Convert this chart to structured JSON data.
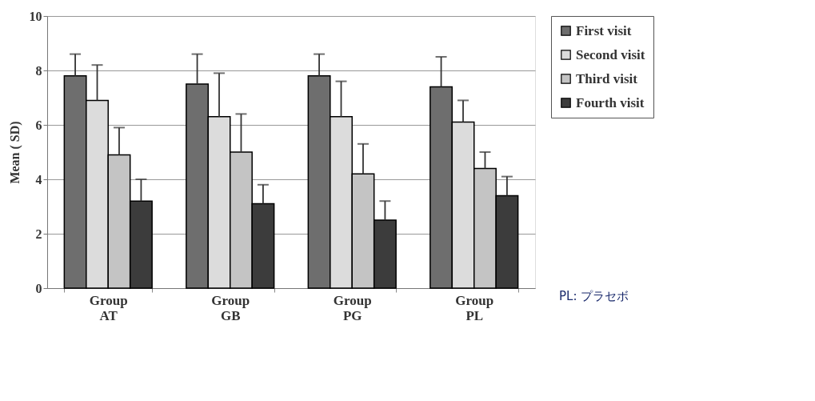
{
  "chart_data": {
    "type": "bar",
    "ylabel": "Mean ( SD)",
    "categories": [
      "Group AT",
      "Group GB",
      "Group PG",
      "Group PL"
    ],
    "series": [
      {
        "name": "First visit",
        "color": "#6e6e6e",
        "values": [
          7.8,
          7.5,
          7.8,
          7.4
        ],
        "errors": [
          [
            7.8,
            8.6
          ],
          [
            7.5,
            8.6
          ],
          [
            7.8,
            8.6
          ],
          [
            7.4,
            8.5
          ]
        ]
      },
      {
        "name": "Second visit",
        "color": "#dcdcdc",
        "values": [
          6.9,
          6.3,
          6.3,
          6.1
        ],
        "errors": [
          [
            6.9,
            8.2
          ],
          [
            6.3,
            7.9
          ],
          [
            6.3,
            7.6
          ],
          [
            6.1,
            6.9
          ]
        ]
      },
      {
        "name": "Third visit",
        "color": "#c4c4c4",
        "values": [
          4.9,
          5.0,
          4.2,
          4.4
        ],
        "errors": [
          [
            4.9,
            5.9
          ],
          [
            5.0,
            6.4
          ],
          [
            4.2,
            5.3
          ],
          [
            4.4,
            5.0
          ]
        ]
      },
      {
        "name": "Fourth visit",
        "color": "#3c3c3c",
        "values": [
          3.2,
          3.1,
          2.5,
          3.4
        ],
        "errors": [
          [
            3.2,
            4.0
          ],
          [
            3.1,
            3.8
          ],
          [
            2.5,
            3.2
          ],
          [
            3.4,
            4.1
          ]
        ]
      }
    ],
    "ylim": [
      0,
      10
    ],
    "yticks": [
      0,
      2,
      4,
      6,
      8,
      10
    ],
    "grid": "y",
    "legend": "right",
    "annotations": [
      "PL: プラセボ"
    ]
  }
}
